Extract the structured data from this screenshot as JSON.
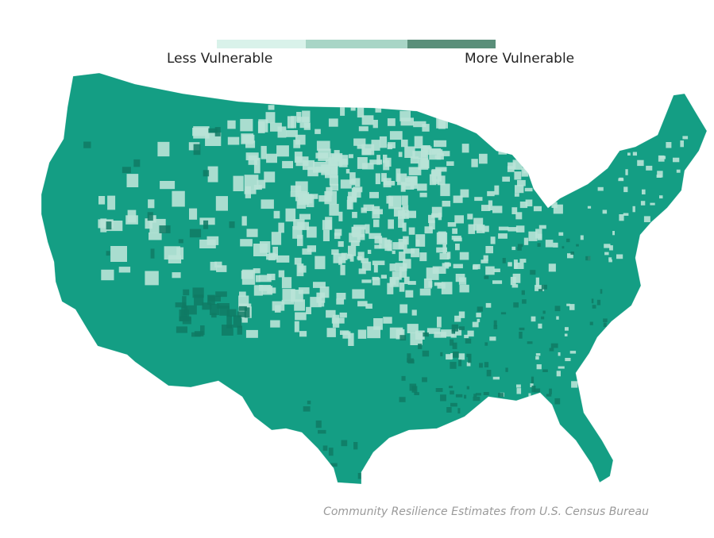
{
  "legend": {
    "less_label": "Less Vulnerable",
    "more_label": "More Vulnerable",
    "bins": [
      {
        "level": "low",
        "color": "#d9f2ea"
      },
      {
        "level": "medium",
        "color": "#a8d5c6"
      },
      {
        "level": "high",
        "color": "#5a8f7a"
      }
    ]
  },
  "map": {
    "region": "Contiguous United States, county level",
    "base_color": "#149e84",
    "light_color": "#b9e3d7",
    "dark_color": "#0f7a64"
  },
  "source": {
    "text": "Community Resilience Estimates from U.S. Census Bureau"
  }
}
